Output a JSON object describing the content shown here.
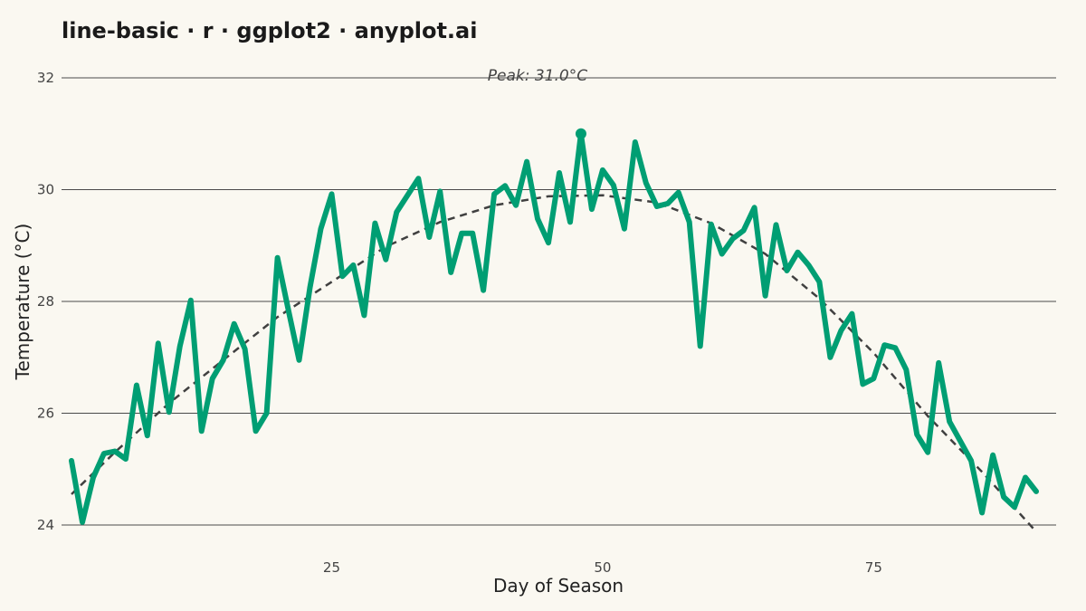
{
  "chart_data": {
    "type": "line",
    "title": "line-basic · r · ggplot2 · anyplot.ai",
    "xlabel": "Day of Season",
    "ylabel": "Temperature (°C)",
    "xlim": [
      1,
      90
    ],
    "ylim": [
      24,
      32
    ],
    "x_ticks": [
      25,
      50,
      75
    ],
    "y_ticks": [
      24,
      26,
      28,
      30,
      32
    ],
    "grid": "horizontal major lines",
    "legend": "none",
    "colors": {
      "series": "#009E73",
      "trend": "#404040",
      "background": "#FAF8F1",
      "grid": "#4a4a4a"
    },
    "series": [
      {
        "x": [
          1,
          2,
          3,
          4,
          5,
          6,
          7,
          8,
          9,
          10,
          11,
          12,
          13,
          14,
          15,
          16,
          17,
          18,
          19,
          20,
          21,
          22,
          23,
          24,
          25,
          26,
          27,
          28,
          29,
          30,
          31,
          32,
          33,
          34,
          35,
          36,
          37,
          38,
          39,
          40,
          41,
          42,
          43,
          44,
          45,
          46,
          47,
          48,
          49,
          50,
          51,
          52,
          53,
          54,
          55,
          56,
          57,
          58,
          59,
          60,
          61,
          62,
          63,
          64,
          65,
          66,
          67,
          68,
          69,
          70,
          71,
          72,
          73,
          74,
          75,
          76,
          77,
          78,
          79,
          80,
          81,
          82,
          83,
          84,
          85,
          86,
          87,
          88,
          89,
          90
        ],
        "values": [
          25.15,
          24.05,
          24.85,
          25.28,
          25.32,
          25.18,
          26.5,
          25.6,
          27.25,
          26.02,
          27.2,
          28.02,
          25.68,
          26.62,
          26.95,
          27.6,
          27.15,
          25.68,
          26.0,
          28.78,
          27.85,
          26.95,
          28.25,
          29.3,
          29.92,
          28.45,
          28.65,
          27.75,
          29.4,
          28.75,
          29.6,
          29.9,
          30.2,
          29.15,
          29.97,
          28.52,
          29.22,
          29.22,
          28.2,
          29.92,
          30.07,
          29.72,
          30.5,
          29.48,
          29.05,
          30.3,
          29.42,
          31.0,
          29.65,
          30.35,
          30.08,
          29.3,
          30.85,
          30.12,
          29.7,
          29.75,
          29.95,
          29.42,
          27.2,
          29.38,
          28.85,
          29.12,
          29.27,
          29.68,
          28.1,
          29.37,
          28.55,
          28.88,
          28.65,
          28.35,
          27.0,
          27.48,
          27.78,
          26.52,
          26.62,
          27.22,
          27.17,
          26.78,
          25.62,
          25.3,
          26.9,
          25.85,
          25.5,
          25.15,
          24.22,
          25.25,
          24.5,
          24.32,
          24.85,
          24.6
        ]
      }
    ],
    "trend": {
      "style": "dashed",
      "x": [
        1,
        5,
        10,
        15,
        20,
        25,
        30,
        35,
        40,
        45,
        50,
        55,
        60,
        65,
        70,
        75,
        80,
        85,
        90
      ],
      "values": [
        24.55,
        25.3,
        26.18,
        26.95,
        27.72,
        28.35,
        28.98,
        29.42,
        29.72,
        29.88,
        29.9,
        29.77,
        29.4,
        28.85,
        28.05,
        27.08,
        25.95,
        24.95,
        23.88
      ]
    },
    "peak": {
      "x": 48,
      "y": 31.0,
      "label": "Peak: 31.0°C"
    }
  }
}
